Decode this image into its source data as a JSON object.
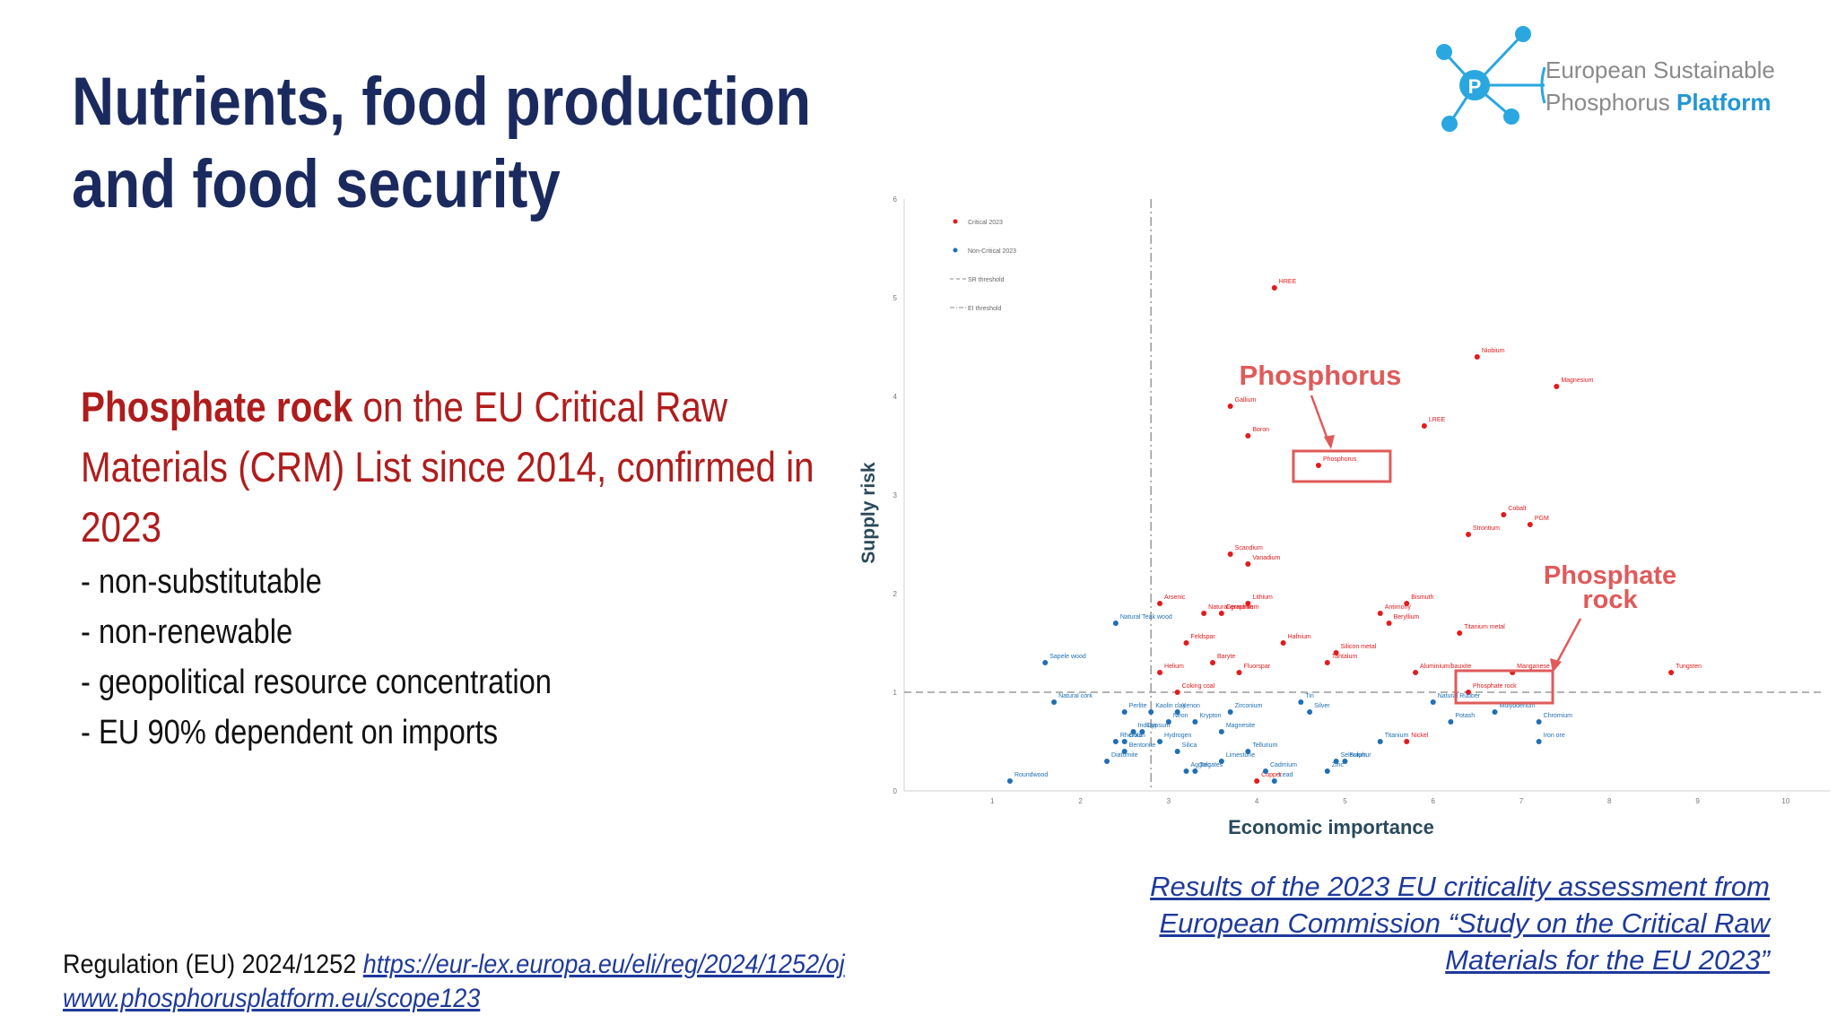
{
  "title": {
    "line1": "Nutrients, food production",
    "line2": "and food security"
  },
  "logo": {
    "line1": "European Sustainable",
    "line2a": "Phosphorus ",
    "line2b": "Platform",
    "mark": "P"
  },
  "lead": {
    "bold": "Phosphate rock",
    "rest": " on the EU Critical Raw Materials (CRM) List since 2014, confirmed in 2023"
  },
  "bullets": [
    "- non-substitutable",
    "- non-renewable",
    "- geopolitical resource concentration",
    "- EU 90% dependent on imports"
  ],
  "caption": {
    "line1": "Results of the 2023 EU criticality assessment from",
    "line2": "European Commission “Study on the Critical Raw",
    "line3": "Materials for the EU 2023”"
  },
  "regulation": {
    "text": "Regulation (EU) 2024/1252 ",
    "link1": "https://eur-lex.europa.eu/eli/reg/2024/1252/oj",
    "link2": "www.phosphorusplatform.eu/scope123"
  },
  "chart_data": {
    "type": "scatter",
    "xlabel": "Economic importance",
    "ylabel": "Supply risk",
    "xlim": [
      0,
      10.5
    ],
    "ylim": [
      0,
      6
    ],
    "xticks": [
      1,
      2,
      3,
      4,
      5,
      6,
      7,
      8,
      9,
      10
    ],
    "yticks": [
      0,
      1,
      2,
      3,
      4,
      5,
      6
    ],
    "sr_threshold": 1,
    "ei_threshold": 2.8,
    "legend": [
      "Critical 2023",
      "Non-Critical 2023",
      "SR threshold",
      "EI threshold"
    ],
    "legend_position": "top-left",
    "colors": {
      "critical": "#e31a1c",
      "noncritical": "#1f6fb4",
      "annotation": "#e05a5a",
      "axis_title": "#2a4a5a"
    },
    "series": [
      {
        "name": "Critical 2023",
        "points": [
          {
            "label": "HREE",
            "x": 4.2,
            "y": 5.1
          },
          {
            "label": "Niobium",
            "x": 6.5,
            "y": 4.4
          },
          {
            "label": "Magnesium",
            "x": 7.4,
            "y": 4.1
          },
          {
            "label": "Gallium",
            "x": 3.7,
            "y": 3.9
          },
          {
            "label": "LREE",
            "x": 5.9,
            "y": 3.7
          },
          {
            "label": "Boron",
            "x": 3.9,
            "y": 3.6
          },
          {
            "label": "Phosphorus",
            "x": 4.7,
            "y": 3.3
          },
          {
            "label": "Cobalt",
            "x": 6.8,
            "y": 2.8
          },
          {
            "label": "PGM",
            "x": 7.1,
            "y": 2.7
          },
          {
            "label": "Strontium",
            "x": 6.4,
            "y": 2.6
          },
          {
            "label": "Scandium",
            "x": 3.7,
            "y": 2.4
          },
          {
            "label": "Vanadium",
            "x": 3.9,
            "y": 2.3
          },
          {
            "label": "Arsenic",
            "x": 2.9,
            "y": 1.9
          },
          {
            "label": "Lithium",
            "x": 3.9,
            "y": 1.9
          },
          {
            "label": "Bismuth",
            "x": 5.7,
            "y": 1.9
          },
          {
            "label": "Germanium",
            "x": 3.6,
            "y": 1.8
          },
          {
            "label": "Antimony",
            "x": 5.4,
            "y": 1.8
          },
          {
            "label": "Natural graphite",
            "x": 3.4,
            "y": 1.8
          },
          {
            "label": "Beryllium",
            "x": 5.5,
            "y": 1.7
          },
          {
            "label": "Titanium metal",
            "x": 6.3,
            "y": 1.6
          },
          {
            "label": "Feldspar",
            "x": 3.2,
            "y": 1.5
          },
          {
            "label": "Hafnium",
            "x": 4.3,
            "y": 1.5
          },
          {
            "label": "Silicon metal",
            "x": 4.9,
            "y": 1.4
          },
          {
            "label": "Baryte",
            "x": 3.5,
            "y": 1.3
          },
          {
            "label": "Tantalum",
            "x": 4.8,
            "y": 1.3
          },
          {
            "label": "Helium",
            "x": 2.9,
            "y": 1.2
          },
          {
            "label": "Fluorspar",
            "x": 3.8,
            "y": 1.2
          },
          {
            "label": "Aluminium/bauxite",
            "x": 5.8,
            "y": 1.2
          },
          {
            "label": "Manganese",
            "x": 6.9,
            "y": 1.2
          },
          {
            "label": "Tungsten",
            "x": 8.7,
            "y": 1.2
          },
          {
            "label": "Coking coal",
            "x": 3.1,
            "y": 1.0
          },
          {
            "label": "Phosphate rock",
            "x": 6.4,
            "y": 1.0
          },
          {
            "label": "Nickel",
            "x": 5.7,
            "y": 0.5
          },
          {
            "label": "Copper",
            "x": 4.0,
            "y": 0.1
          }
        ]
      },
      {
        "name": "Non-Critical 2023",
        "points": [
          {
            "label": "Natural Teak wood",
            "x": 2.4,
            "y": 1.7
          },
          {
            "label": "Sapele wood",
            "x": 1.6,
            "y": 1.3
          },
          {
            "label": "Natural cork",
            "x": 1.7,
            "y": 0.9
          },
          {
            "label": "Perlite",
            "x": 2.5,
            "y": 0.8
          },
          {
            "label": "Kaolin clay",
            "x": 2.8,
            "y": 0.8
          },
          {
            "label": "Xenon",
            "x": 3.1,
            "y": 0.8
          },
          {
            "label": "Krypton",
            "x": 3.3,
            "y": 0.7
          },
          {
            "label": "Zirconium",
            "x": 3.7,
            "y": 0.8
          },
          {
            "label": "Tin",
            "x": 4.5,
            "y": 0.9
          },
          {
            "label": "Silver",
            "x": 4.6,
            "y": 0.8
          },
          {
            "label": "Natural Rubber",
            "x": 6.0,
            "y": 0.9
          },
          {
            "label": "Potash",
            "x": 6.2,
            "y": 0.7
          },
          {
            "label": "Molybdenum",
            "x": 6.7,
            "y": 0.8
          },
          {
            "label": "Chromium",
            "x": 7.2,
            "y": 0.7
          },
          {
            "label": "Iron ore",
            "x": 7.2,
            "y": 0.5
          },
          {
            "label": "Gypsum",
            "x": 2.7,
            "y": 0.6
          },
          {
            "label": "Neon",
            "x": 3.0,
            "y": 0.7
          },
          {
            "label": "Indium",
            "x": 2.6,
            "y": 0.6
          },
          {
            "label": "Magnesite",
            "x": 3.6,
            "y": 0.6
          },
          {
            "label": "Rhenium",
            "x": 2.4,
            "y": 0.5
          },
          {
            "label": "Gold",
            "x": 2.5,
            "y": 0.5
          },
          {
            "label": "Hydrogen",
            "x": 2.9,
            "y": 0.5
          },
          {
            "label": "Titanium",
            "x": 5.4,
            "y": 0.5
          },
          {
            "label": "Tellurium",
            "x": 3.9,
            "y": 0.4
          },
          {
            "label": "Bentonite",
            "x": 2.5,
            "y": 0.4
          },
          {
            "label": "Silica",
            "x": 3.1,
            "y": 0.4
          },
          {
            "label": "Limestone",
            "x": 3.6,
            "y": 0.3
          },
          {
            "label": "Selenium",
            "x": 4.9,
            "y": 0.3
          },
          {
            "label": "Sulphur",
            "x": 5.0,
            "y": 0.3
          },
          {
            "label": "Diatomite",
            "x": 2.3,
            "y": 0.3
          },
          {
            "label": "Cadmium",
            "x": 4.1,
            "y": 0.2
          },
          {
            "label": "Aggregates",
            "x": 3.2,
            "y": 0.2
          },
          {
            "label": "Talc",
            "x": 3.3,
            "y": 0.2
          },
          {
            "label": "Zinc",
            "x": 4.8,
            "y": 0.2
          },
          {
            "label": "Lead",
            "x": 4.2,
            "y": 0.1
          },
          {
            "label": "Roundwood",
            "x": 1.2,
            "y": 0.1
          }
        ]
      }
    ],
    "annotations": [
      {
        "text": "Phosphorus",
        "target": "Phosphorus"
      },
      {
        "text": "Phosphate rock",
        "lines": [
          "Phosphate",
          "rock"
        ],
        "target": "Phosphate rock"
      }
    ]
  }
}
